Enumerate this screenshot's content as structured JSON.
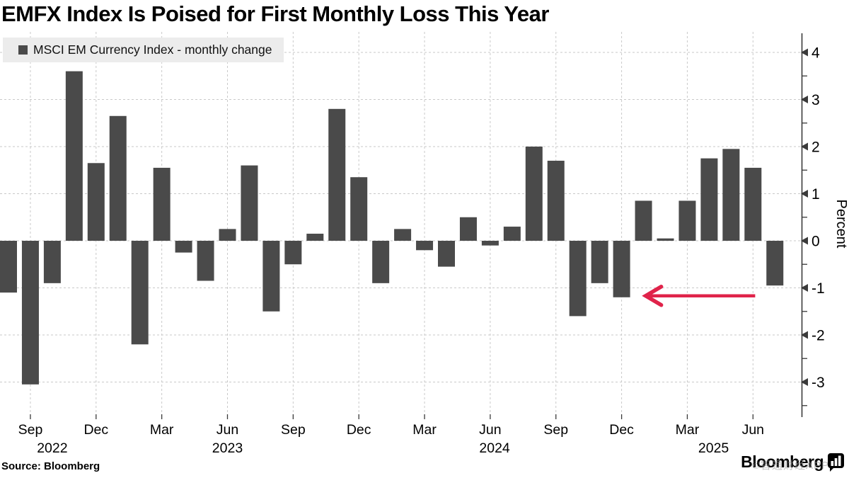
{
  "title": "EMFX Index Is Poised for First Monthly Loss This Year",
  "legend": {
    "label": "MSCI EM Currency Index - monthly change",
    "swatch_color": "#4a4a4a"
  },
  "source": "Source: Bloomberg",
  "branding": {
    "logo_text": "Bloomberg",
    "watermark": "©智通财经APP"
  },
  "chart_data": {
    "type": "bar",
    "title": "EMFX Index Is Poised for First Monthly Loss This Year",
    "series_name": "MSCI EM Currency Index - monthly change",
    "x": [
      "Aug 2022",
      "Sep 2022",
      "Oct 2022",
      "Nov 2022",
      "Dec 2022",
      "Jan 2023",
      "Feb 2023",
      "Mar 2023",
      "Apr 2023",
      "May 2023",
      "Jun 2023",
      "Jul 2023",
      "Aug 2023",
      "Sep 2023",
      "Oct 2023",
      "Nov 2023",
      "Dec 2023",
      "Jan 2024",
      "Feb 2024",
      "Mar 2024",
      "Apr 2024",
      "May 2024",
      "Jun 2024",
      "Jul 2024",
      "Aug 2024",
      "Sep 2024",
      "Oct 2024",
      "Nov 2024",
      "Dec 2024",
      "Jan 2025",
      "Feb 2025",
      "Mar 2025",
      "Apr 2025",
      "May 2025",
      "Jun 2025",
      "Jul 2025"
    ],
    "values": [
      -1.1,
      -3.05,
      -0.9,
      3.6,
      1.65,
      2.65,
      -2.2,
      1.55,
      -0.25,
      -0.85,
      0.25,
      1.6,
      -1.5,
      -0.5,
      0.15,
      2.8,
      1.35,
      -0.9,
      0.25,
      -0.2,
      -0.55,
      0.5,
      -0.1,
      0.3,
      2.0,
      1.7,
      -1.6,
      -0.9,
      -1.2,
      0.85,
      0.05,
      0.85,
      1.75,
      1.95,
      1.55,
      -0.95
    ],
    "bar_color": "#4a4a4a",
    "ylabel": "Percent",
    "ylim": [
      -3.6,
      4.3
    ],
    "yticks": [
      4,
      3,
      2,
      1,
      0,
      -1,
      -2,
      -3
    ],
    "grid": true,
    "legend_position": "top-left",
    "xtick_quarter_labels": [
      "Sep",
      "Dec",
      "Mar",
      "Jun",
      "Sep",
      "Dec",
      "Mar",
      "Jun",
      "Sep",
      "Dec",
      "Mar",
      "Jun"
    ],
    "year_labels": [
      {
        "label": "2022",
        "month_index": 2.0
      },
      {
        "label": "2023",
        "month_index": 10.0
      },
      {
        "label": "2024",
        "month_index": 22.2
      },
      {
        "label": "2025",
        "month_index": 32.2
      }
    ],
    "annotation_arrow": {
      "points_at": "Dec 2024 monthly loss",
      "y_value": -1.17,
      "from_month_index": 34.1,
      "to_month_index": 29.1,
      "color": "#e0234a"
    }
  }
}
